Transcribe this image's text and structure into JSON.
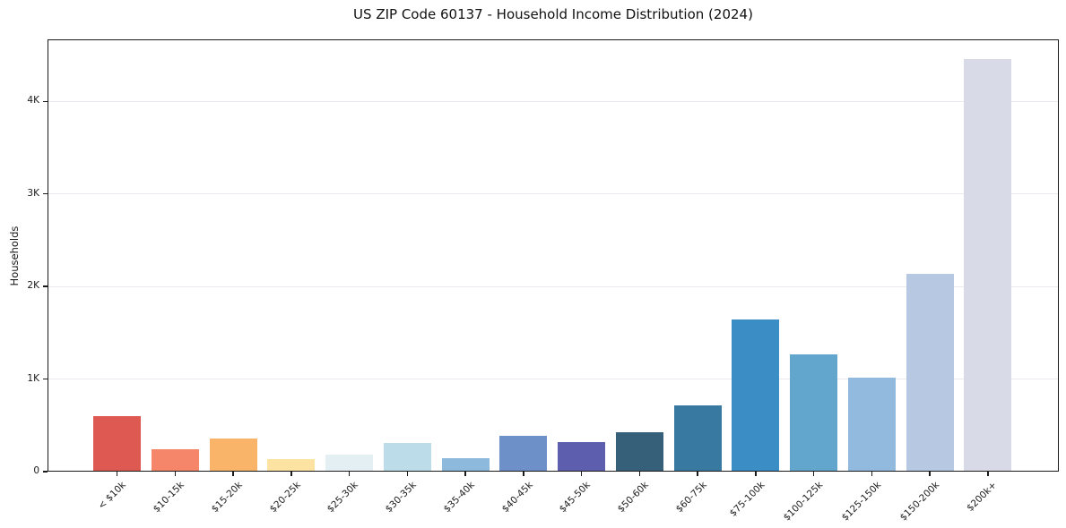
{
  "figure": {
    "title": "US ZIP Code 60137 - Household Income Distribution (2024)"
  },
  "chart_data": {
    "type": "bar",
    "title": "US ZIP Code 60137 - Household Income Distribution (2024)",
    "xlabel": "",
    "ylabel": "Households",
    "categories": [
      "< $10k",
      "$10-15k",
      "$15-20k",
      "$20-25k",
      "$25-30k",
      "$30-35k",
      "$35-40k",
      "$40-45k",
      "$45-50k",
      "$50-60k",
      "$60-75k",
      "$75-100k",
      "$100-125k",
      "$125-150k",
      "$150-200k",
      "$200k+"
    ],
    "values": [
      590,
      230,
      345,
      130,
      170,
      295,
      135,
      380,
      310,
      420,
      710,
      1630,
      1260,
      1010,
      2130,
      4450
    ],
    "bar_colors": [
      "#dd5952",
      "#f5866a",
      "#f9b46a",
      "#fde3a2",
      "#e4eff4",
      "#bcdcea",
      "#8cb9dc",
      "#6d90c8",
      "#5d5fae",
      "#36607a",
      "#3879a2",
      "#3a8ec5",
      "#62a5cd",
      "#92bade",
      "#b7c9e2",
      "#d8dae8"
    ],
    "ylim": [
      0,
      4670
    ],
    "yticks": [
      {
        "value": 0,
        "label": "0"
      },
      {
        "value": 1000,
        "label": "1K"
      },
      {
        "value": 2000,
        "label": "2K"
      },
      {
        "value": 3000,
        "label": "3K"
      },
      {
        "value": 4000,
        "label": "4K"
      }
    ],
    "grid": "horizontal",
    "legend": "none"
  },
  "colors": {
    "grid": "#e9e9ef",
    "spine": "#1a1a1a",
    "text": "#1a1a1a",
    "background": "#ffffff"
  }
}
